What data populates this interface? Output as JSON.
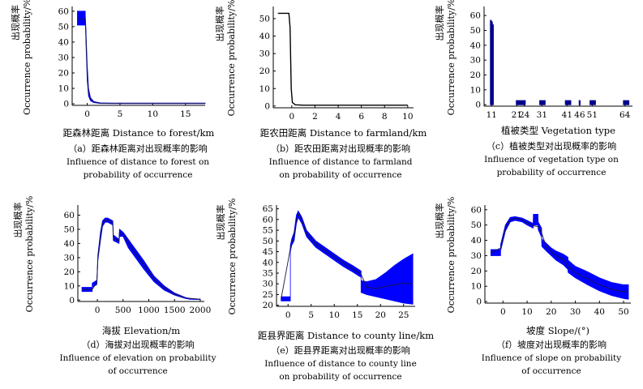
{
  "chart_data": [
    {
      "id": "a",
      "type": "area",
      "xlabel": "距森林距离 Distance to forest/km",
      "ylabel_cn": "出现概率",
      "ylabel_en": "Occurrence probability/%",
      "xlim": [
        -2.3,
        18
      ],
      "ylim": [
        -1,
        62
      ],
      "xticks": [
        0,
        5,
        10,
        15
      ],
      "yticks": [
        0,
        10,
        20,
        30,
        40,
        50,
        60
      ],
      "color": "#0000ff",
      "band": {
        "x": [
          -1.5,
          -0.3,
          -0.3,
          -0.2,
          0,
          0.2,
          0.5,
          1,
          2,
          4,
          18
        ],
        "low": [
          51,
          51,
          54,
          40,
          15,
          5,
          2,
          0.8,
          0.2,
          0.1,
          0.1
        ],
        "high": [
          60,
          60,
          58,
          48,
          25,
          10,
          4,
          1.5,
          0.6,
          0.5,
          0.5
        ]
      },
      "line": {
        "x": [
          -1.5,
          -0.3,
          -0.2,
          0,
          0.2,
          0.5,
          1,
          2,
          4,
          18
        ],
        "y": [
          55,
          55,
          44,
          20,
          7,
          3,
          1.1,
          0.4,
          0.3,
          0.3
        ]
      },
      "caption": "（a）距森林距离对出现概率的影响",
      "caption_en": [
        "Influence of distance to forest on",
        "probability of occurrence"
      ]
    },
    {
      "id": "b",
      "type": "line",
      "xlabel": "距农田距离 Distance to farmland/km",
      "ylabel_cn": "出现概率",
      "ylabel_en": "Occurrence probability/%",
      "xlim": [
        -1.6,
        10.5
      ],
      "ylim": [
        -1,
        56
      ],
      "xticks": [
        0,
        2,
        4,
        6,
        8,
        10
      ],
      "yticks": [
        0,
        10,
        20,
        30,
        40,
        50
      ],
      "color": "#000000",
      "line": {
        "x": [
          -1.2,
          -0.25,
          -0.15,
          -0.05,
          0.05,
          0.3,
          1,
          10
        ],
        "y": [
          53,
          53,
          45,
          10,
          2,
          0.7,
          0.5,
          0.5
        ]
      },
      "caption": "（b）距农田距离对出现概率的影响",
      "caption_en": [
        "Influence of distance to farmland",
        "on probability of occurrence"
      ]
    },
    {
      "id": "c",
      "type": "bar",
      "xlabel": "植被类型 Vegetation type",
      "ylabel_cn": "出现概率",
      "ylabel_en": "Occurrence probability/%",
      "xlim": [
        8,
        67
      ],
      "ylim": [
        -1,
        65
      ],
      "xticks": [
        11,
        21,
        24,
        31,
        41,
        46,
        51,
        64
      ],
      "yticks": [
        0,
        10,
        20,
        30,
        40,
        50,
        60
      ],
      "color": "#00008b",
      "bars": [
        {
          "x": 10.7,
          "v": 57
        },
        {
          "x": 11.1,
          "v": 56
        },
        {
          "x": 11.5,
          "v": 54
        },
        {
          "x": 21,
          "v": 3
        },
        {
          "x": 21.5,
          "v": 3
        },
        {
          "x": 22,
          "v": 3
        },
        {
          "x": 22.6,
          "v": 3
        },
        {
          "x": 23.2,
          "v": 3
        },
        {
          "x": 23.7,
          "v": 3
        },
        {
          "x": 24.2,
          "v": 3
        },
        {
          "x": 30.3,
          "v": 3
        },
        {
          "x": 30.9,
          "v": 3
        },
        {
          "x": 31.5,
          "v": 3
        },
        {
          "x": 32.1,
          "v": 3
        },
        {
          "x": 40.5,
          "v": 3
        },
        {
          "x": 41.1,
          "v": 3
        },
        {
          "x": 41.7,
          "v": 3
        },
        {
          "x": 42.3,
          "v": 3
        },
        {
          "x": 46,
          "v": 3
        },
        {
          "x": 50.3,
          "v": 3
        },
        {
          "x": 50.9,
          "v": 3
        },
        {
          "x": 51.5,
          "v": 3
        },
        {
          "x": 52.1,
          "v": 3
        },
        {
          "x": 63.6,
          "v": 3
        },
        {
          "x": 64.2,
          "v": 3
        },
        {
          "x": 64.8,
          "v": 3
        },
        {
          "x": 65.4,
          "v": 3
        }
      ],
      "caption": "（c）植被类型对出现概率的影响",
      "caption_en": [
        "Influence of vegetation type on",
        "probability of occurrence"
      ]
    },
    {
      "id": "d",
      "type": "area",
      "xlabel": "海拔 Elevation/m",
      "ylabel_cn": "出现概率",
      "ylabel_en": "Occurrence probability/%",
      "xlim": [
        -380,
        2080
      ],
      "ylim": [
        -1,
        66
      ],
      "xticks": [
        0,
        500,
        1000,
        1500,
        2000
      ],
      "yticks": [
        0,
        10,
        20,
        30,
        40,
        50,
        60
      ],
      "color": "#0000ff",
      "band": {
        "x": [
          -300,
          -100,
          -100,
          -10,
          10,
          60,
          100,
          150,
          200,
          300,
          310,
          420,
          430,
          500,
          600,
          700,
          900,
          1100,
          1300,
          1500,
          1700,
          1800,
          2000
        ],
        "low": [
          6,
          6,
          9,
          11,
          28,
          42,
          52,
          55,
          55,
          53,
          42,
          40,
          45,
          45,
          37,
          32,
          22,
          13,
          7,
          3.5,
          1.2,
          0.5,
          0.3
        ],
        "high": [
          9,
          9,
          12,
          14,
          32,
          48,
          56,
          58,
          58,
          56,
          46,
          43,
          50,
          48,
          43,
          38,
          28,
          17,
          10,
          5,
          2,
          1,
          0.7
        ]
      },
      "line": {
        "x": [
          -300,
          -100,
          -10,
          10,
          60,
          100,
          150,
          200,
          300,
          310,
          420,
          430,
          500,
          600,
          700,
          900,
          1100,
          1300,
          1500,
          1700,
          2000
        ],
        "y": [
          7.5,
          7.5,
          12.5,
          30,
          45,
          54,
          56.5,
          56.5,
          54.5,
          44,
          41.5,
          47.5,
          46.5,
          40,
          35,
          25,
          15,
          8.5,
          4.2,
          1.6,
          0.5
        ]
      },
      "caption": "（d）海拔对出现概率的影响",
      "caption_en": [
        "Influence of elevation on probability",
        "of occurrence"
      ]
    },
    {
      "id": "e",
      "type": "area",
      "xlabel": "距县界距离 Distance to county line/km",
      "ylabel_cn": "出现概率",
      "ylabel_en": "Occurrence probability/%",
      "xlim": [
        -2.5,
        27.5
      ],
      "ylim": [
        19.5,
        66
      ],
      "xticks": [
        0,
        5,
        10,
        15,
        20,
        25
      ],
      "yticks": [
        20,
        25,
        30,
        35,
        40,
        45,
        50,
        55,
        60,
        65
      ],
      "color": "#0000ff",
      "band": {
        "x": [
          -1.5,
          0.5,
          0.5,
          0.8,
          1.3,
          1.8,
          2.2,
          3,
          4,
          6,
          8,
          10,
          12,
          14,
          15.8,
          15.8,
          17,
          19,
          21,
          23,
          25,
          27
        ],
        "low": [
          22,
          22,
          45,
          48,
          50,
          58,
          61,
          58,
          52,
          47,
          44,
          41,
          38,
          35.5,
          33,
          26,
          25,
          24,
          23,
          22,
          21,
          20.5
        ],
        "high": [
          24,
          24,
          48,
          51,
          54,
          62,
          64,
          61,
          55,
          50,
          47,
          44,
          41,
          38.5,
          36,
          31.5,
          31,
          32,
          35,
          38.5,
          41.5,
          44
        ]
      },
      "line": {
        "x": [
          -1.5,
          0.5,
          0.8,
          1.3,
          1.8,
          2.2,
          3,
          4,
          6,
          8,
          10,
          12,
          14,
          15.8,
          17,
          19,
          21,
          23,
          25,
          27
        ],
        "y": [
          23,
          46.5,
          49.5,
          52,
          60,
          62.5,
          59.5,
          53.5,
          48.5,
          45.5,
          42.5,
          39.5,
          37,
          34.5,
          28.5,
          27.8,
          28.8,
          29.5,
          30.5,
          30
        ]
      },
      "caption": "（e）距县界距离对出现概率的影响",
      "caption_en": [
        "Influence of distance to county line",
        "on probability of occurrence"
      ]
    },
    {
      "id": "f",
      "type": "area",
      "xlabel": "坡度 Slope/(°)",
      "ylabel_cn": "出现概率",
      "ylabel_en": "Occurrence probability/%",
      "xlim": [
        -7.5,
        53
      ],
      "ylim": [
        -1,
        62
      ],
      "xticks": [
        0,
        10,
        20,
        30,
        40,
        50
      ],
      "yticks": [
        0,
        10,
        20,
        30,
        40,
        50,
        60
      ],
      "color": "#0000ff",
      "band": {
        "x": [
          -5,
          -1,
          -1,
          1,
          3,
          5,
          8,
          10,
          12.5,
          12.6,
          14.5,
          14.6,
          16,
          16.1,
          18,
          20,
          22,
          25,
          26.9,
          27,
          30,
          35,
          40,
          45,
          50,
          52
        ],
        "low": [
          30,
          30,
          33,
          46,
          52,
          53,
          52,
          50,
          48,
          50,
          50,
          47,
          42,
          36,
          33,
          30,
          27,
          24,
          21,
          19,
          15.5,
          11,
          7,
          4,
          2,
          1.5
        ],
        "high": [
          34,
          34,
          37,
          50,
          55,
          55.5,
          54.5,
          53,
          51,
          57,
          57,
          52,
          48,
          41,
          38,
          35,
          33,
          31,
          29,
          27,
          23,
          19.5,
          15.5,
          12.5,
          11,
          11
        ]
      },
      "line": {
        "x": [
          -5,
          -1,
          1,
          3,
          5,
          8,
          10,
          12.5,
          14.5,
          16,
          18,
          20,
          22,
          25,
          27,
          30,
          35,
          40,
          45,
          50,
          52
        ],
        "y": [
          32,
          35,
          48,
          53.5,
          54.5,
          53.5,
          51.5,
          49.5,
          49,
          45,
          35.5,
          32.5,
          30,
          27.5,
          23,
          19,
          15,
          11,
          8,
          6.5,
          6.5
        ]
      },
      "caption": "（f）坡度对出现概率的影响",
      "caption_en": [
        "Influence of slope on probability",
        "of occurrence"
      ]
    }
  ]
}
